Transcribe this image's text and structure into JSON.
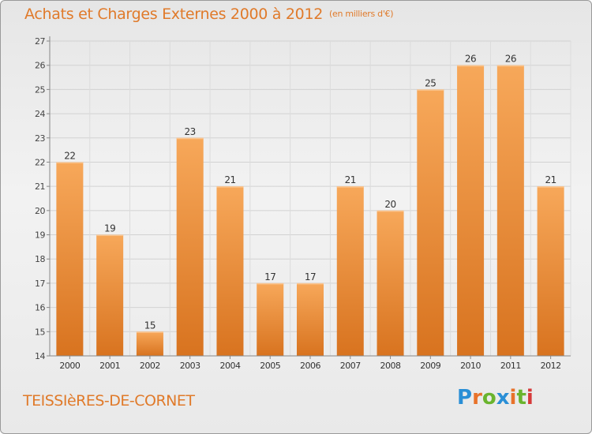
{
  "page": {
    "title": "Achats et Charges Externes 2000 à 2012",
    "subtitle": "(en milliers d'€)",
    "commune": "TEISSIèRES-DE-CORNET",
    "logo_text": "Proxiti",
    "logo_colors": [
      "#2a8fd6",
      "#e8722a",
      "#6ab42e",
      "#2a8fd6",
      "#e8722a",
      "#6ab42e",
      "#d63a3a"
    ]
  },
  "colors": {
    "bar_top": "#f7a85a",
    "bar_bottom": "#d8731f",
    "accent": "#e07a2a"
  },
  "chart_data": {
    "type": "bar",
    "categories": [
      "2000",
      "2001",
      "2002",
      "2003",
      "2004",
      "2005",
      "2006",
      "2007",
      "2008",
      "2009",
      "2010",
      "2011",
      "2012"
    ],
    "values": [
      22,
      19,
      15,
      23,
      21,
      17,
      17,
      21,
      20,
      25,
      26,
      26,
      21
    ],
    "title": "Achats et Charges Externes 2000 à 2012",
    "ylim": [
      14,
      27
    ],
    "yticks": [
      14,
      15,
      16,
      17,
      18,
      19,
      20,
      21,
      22,
      23,
      24,
      25,
      26,
      27
    ],
    "grid": true
  }
}
